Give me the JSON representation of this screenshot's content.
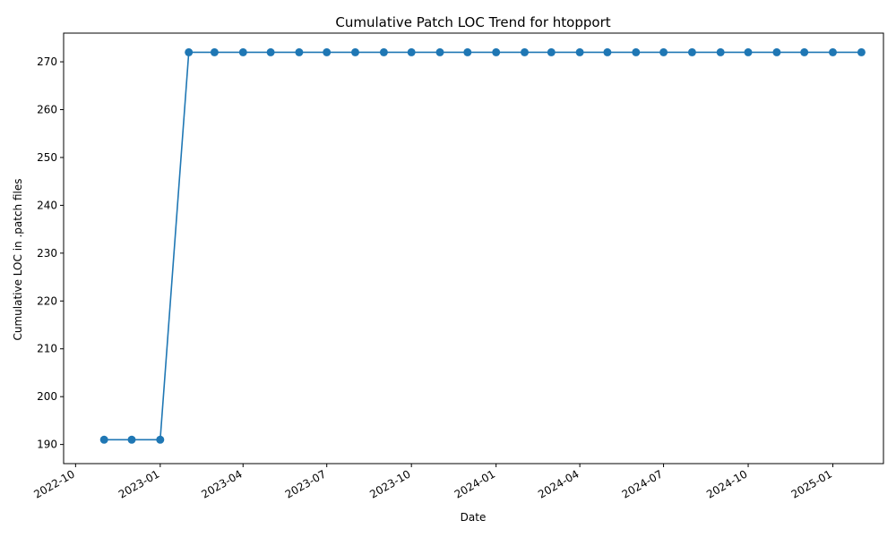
{
  "chart_data": {
    "type": "line",
    "title": "Cumulative Patch LOC Trend for htopport",
    "xlabel": "Date",
    "ylabel": "Cumulative LOC in .patch files",
    "xlim": [
      "2022-09-18",
      "2025-02-25"
    ],
    "ylim": [
      186,
      276
    ],
    "x_ticks": [
      "2022-10",
      "2023-01",
      "2023-04",
      "2023-07",
      "2023-10",
      "2024-01",
      "2024-04",
      "2024-07",
      "2024-10",
      "2025-01"
    ],
    "y_ticks": [
      190,
      200,
      210,
      220,
      230,
      240,
      250,
      260,
      270
    ],
    "grid": false,
    "series": [
      {
        "color": "#1f77b4",
        "marker": "circle",
        "x": [
          "2022-11-01",
          "2022-12-01",
          "2023-01-01",
          "2023-02-01",
          "2023-03-01",
          "2023-04-01",
          "2023-05-01",
          "2023-06-01",
          "2023-07-01",
          "2023-08-01",
          "2023-09-01",
          "2023-10-01",
          "2023-11-01",
          "2023-12-01",
          "2024-01-01",
          "2024-02-01",
          "2024-03-01",
          "2024-04-01",
          "2024-05-01",
          "2024-06-01",
          "2024-07-01",
          "2024-08-01",
          "2024-09-01",
          "2024-10-01",
          "2024-11-01",
          "2024-12-01",
          "2025-01-01",
          "2025-02-01"
        ],
        "values": [
          191,
          191,
          191,
          272,
          272,
          272,
          272,
          272,
          272,
          272,
          272,
          272,
          272,
          272,
          272,
          272,
          272,
          272,
          272,
          272,
          272,
          272,
          272,
          272,
          272,
          272,
          272,
          272
        ]
      }
    ]
  }
}
